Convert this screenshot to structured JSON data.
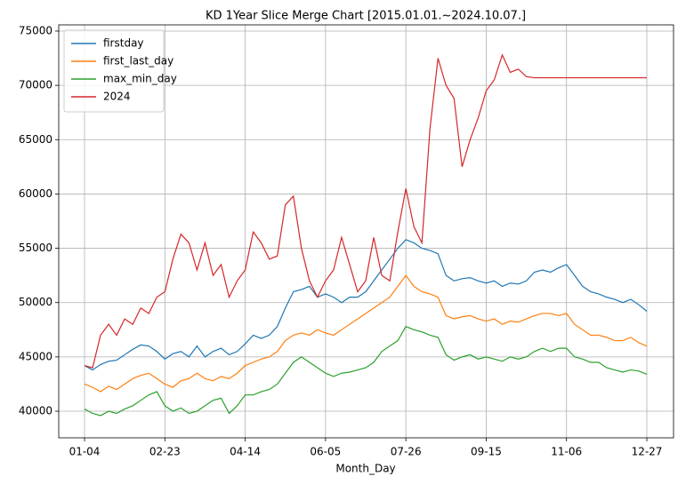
{
  "chart_data": {
    "type": "line",
    "title": "KD 1Year Slice Merge Chart [2015.01.01.~2024.10.07.]",
    "x_label": "Month_Day",
    "categories": [
      "01-04",
      null,
      null,
      null,
      null,
      null,
      null,
      null,
      null,
      null,
      "02-23",
      null,
      null,
      null,
      null,
      null,
      null,
      null,
      null,
      null,
      "04-14",
      null,
      null,
      null,
      null,
      null,
      null,
      null,
      null,
      null,
      "06-05",
      null,
      null,
      null,
      null,
      null,
      null,
      null,
      null,
      null,
      "07-26",
      null,
      null,
      null,
      null,
      null,
      null,
      null,
      null,
      null,
      "09-15",
      null,
      null,
      null,
      null,
      null,
      null,
      null,
      null,
      null,
      "11-06",
      null,
      null,
      null,
      null,
      null,
      null,
      null,
      null,
      null,
      "12-27"
    ],
    "series": [
      {
        "name": "firstday",
        "color": "#1f77b4",
        "values": [
          44200,
          43800,
          44300,
          44600,
          44700,
          45200,
          45700,
          46100,
          46000,
          45500,
          44800,
          45300,
          45500,
          45000,
          46000,
          45000,
          45500,
          45800,
          45200,
          45500,
          46200,
          47000,
          46700,
          47000,
          47800,
          49500,
          51000,
          51200,
          51500,
          50500,
          50800,
          50500,
          50000,
          50500,
          50500,
          51000,
          52000,
          53000,
          54000,
          55000,
          55800,
          55500,
          55000,
          54800,
          54500,
          52500,
          52000,
          52200,
          52300,
          52000,
          51800,
          52000,
          51500,
          51800,
          51700,
          52000,
          52800,
          53000,
          52800,
          53200,
          53500,
          52500,
          51500,
          51000,
          50800,
          50500,
          50300,
          50000,
          50300,
          49800,
          49200
        ]
      },
      {
        "name": "first_last_day",
        "color": "#ff7f0e",
        "values": [
          42500,
          42200,
          41800,
          42300,
          42000,
          42500,
          43000,
          43300,
          43500,
          43000,
          42500,
          42200,
          42800,
          43000,
          43500,
          43000,
          42800,
          43200,
          43000,
          43500,
          44200,
          44500,
          44800,
          45000,
          45500,
          46500,
          47000,
          47200,
          47000,
          47500,
          47200,
          47000,
          47500,
          48000,
          48500,
          49000,
          49500,
          50000,
          50500,
          51500,
          52500,
          51500,
          51000,
          50800,
          50500,
          48800,
          48500,
          48700,
          48800,
          48500,
          48300,
          48500,
          48000,
          48300,
          48200,
          48500,
          48800,
          49000,
          49000,
          48800,
          49000,
          48000,
          47500,
          47000,
          47000,
          46800,
          46500,
          46500,
          46800,
          46300,
          46000
        ]
      },
      {
        "name": "max_min_day",
        "color": "#2ca02c",
        "values": [
          40200,
          39800,
          39600,
          40000,
          39800,
          40200,
          40500,
          41000,
          41500,
          41800,
          40500,
          40000,
          40300,
          39800,
          40000,
          40500,
          41000,
          41200,
          39800,
          40500,
          41500,
          41500,
          41800,
          42000,
          42500,
          43500,
          44500,
          45000,
          44500,
          44000,
          43500,
          43200,
          43500,
          43600,
          43800,
          44000,
          44500,
          45500,
          46000,
          46500,
          47800,
          47500,
          47300,
          47000,
          46800,
          45200,
          44700,
          45000,
          45200,
          44800,
          45000,
          44800,
          44600,
          45000,
          44800,
          45000,
          45500,
          45800,
          45500,
          45800,
          45800,
          45000,
          44800,
          44500,
          44500,
          44000,
          43800,
          43600,
          43800,
          43700,
          43400
        ]
      },
      {
        "name": "2024",
        "color": "#d62728",
        "values": [
          44200,
          44000,
          47000,
          48000,
          47000,
          48500,
          48000,
          49500,
          49000,
          50500,
          51000,
          54000,
          56300,
          55500,
          53000,
          55500,
          52500,
          53500,
          50500,
          52000,
          53000,
          56500,
          55500,
          54000,
          54300,
          59000,
          59800,
          55000,
          52000,
          50500,
          52000,
          53000,
          56000,
          53500,
          51000,
          52000,
          56000,
          52500,
          52000,
          56500,
          60500,
          57000,
          55500,
          66000,
          72500,
          70000,
          68800,
          62500,
          65000,
          67000,
          69500,
          70500,
          72800,
          71200,
          71500,
          70800,
          70700,
          70700,
          70700,
          70700,
          70700,
          70700,
          70700,
          70700,
          70700,
          70700,
          70700,
          70700,
          70700,
          70700,
          70700
        ]
      }
    ],
    "ylim": [
      37550,
      75570
    ],
    "yticks": [
      40000,
      45000,
      50000,
      55000,
      60000,
      65000,
      70000,
      75000
    ],
    "grid": true,
    "legend": "upper-left"
  }
}
